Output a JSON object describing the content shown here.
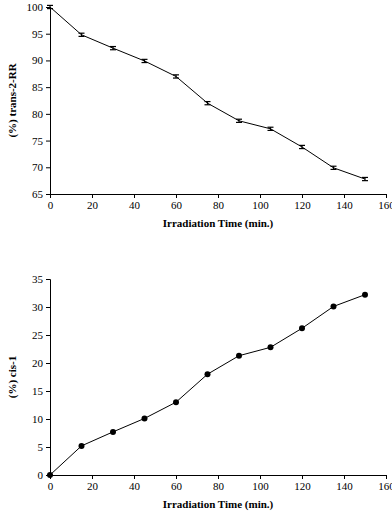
{
  "chart_data": [
    {
      "type": "line",
      "x_label": "Irradiation Time (min.)",
      "y_label": "(%) trans-2-RR",
      "x": [
        0,
        15,
        30,
        45,
        60,
        75,
        90,
        105,
        120,
        135,
        150
      ],
      "series": [
        {
          "name": "trans-2-RR",
          "color": "#000000",
          "marker": "none",
          "line_style": "solid",
          "values": [
            100,
            94.8,
            92.3,
            89.9,
            87.0,
            82.0,
            78.7,
            77.2,
            73.8,
            69.9,
            67.8
          ],
          "errors": [
            0.3,
            0.3,
            0.3,
            0.3,
            0.3,
            0.3,
            0.3,
            0.3,
            0.3,
            0.3,
            0.3
          ]
        }
      ],
      "xlim": [
        0,
        160
      ],
      "xticks": [
        0,
        20,
        40,
        60,
        80,
        100,
        120,
        140,
        160
      ],
      "ylim": [
        65,
        100
      ],
      "yticks": [
        65,
        70,
        75,
        80,
        85,
        90,
        95,
        100
      ],
      "grid": false
    },
    {
      "type": "line",
      "x_label": "Irradiation Time (min.)",
      "y_label": "(%) cis-1",
      "x": [
        0,
        15,
        30,
        45,
        60,
        75,
        90,
        105,
        120,
        135,
        150
      ],
      "series": [
        {
          "name": "cis-1",
          "color": "#000000",
          "marker": "circle",
          "line_style": "solid",
          "values": [
            0,
            5.2,
            7.7,
            10.1,
            13.0,
            18.0,
            21.3,
            22.8,
            26.2,
            30.1,
            32.2
          ]
        }
      ],
      "xlim": [
        0,
        160
      ],
      "xticks": [
        0,
        20,
        40,
        60,
        80,
        100,
        120,
        140,
        160
      ],
      "ylim": [
        0,
        35
      ],
      "yticks": [
        0,
        5,
        10,
        15,
        20,
        25,
        30,
        35
      ],
      "grid": false
    }
  ]
}
